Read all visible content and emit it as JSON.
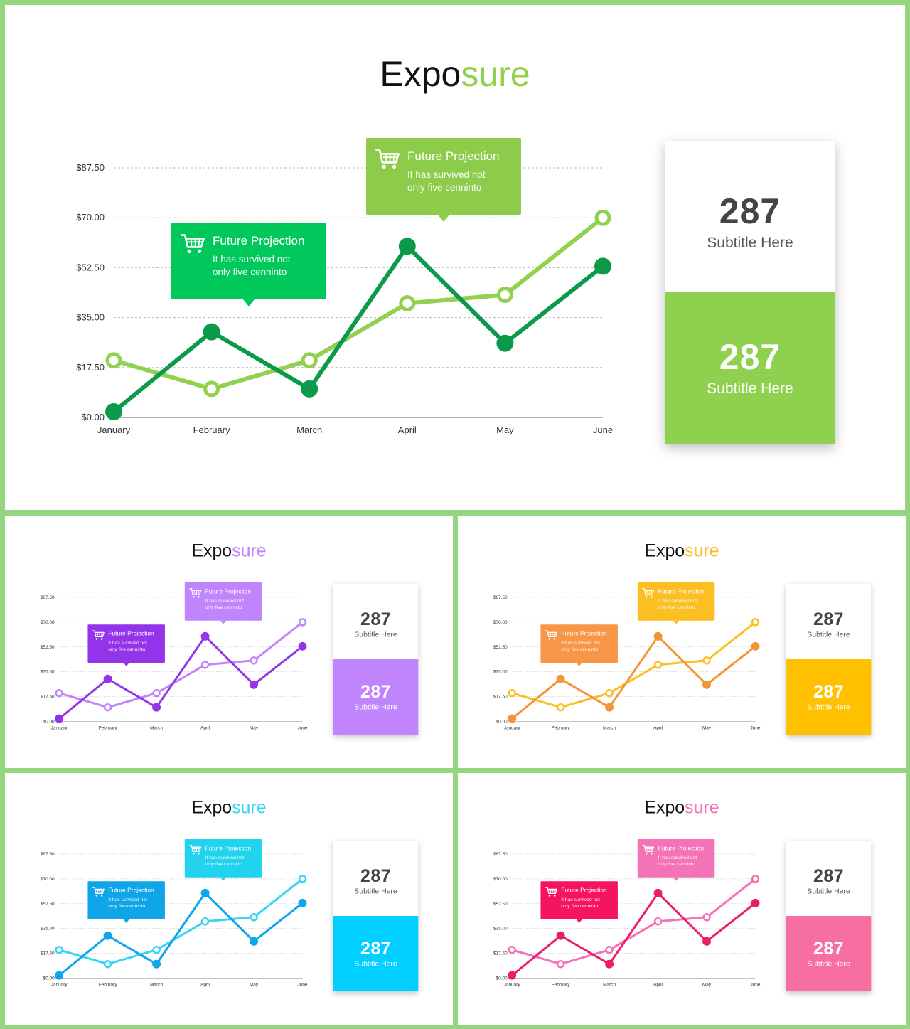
{
  "common": {
    "title_part1": "Expo",
    "title_part2": "sure",
    "callout_title": "Future Projection",
    "callout_body_line1": "It has survived not",
    "callout_body_line2": "only five cenninto",
    "card_top_value": "287",
    "card_top_subtitle": "Subtitle Here",
    "card_bottom_value": "287",
    "card_bottom_subtitle": "Subtitle Here",
    "cart_icon": "shopping-cart-icon"
  },
  "themes": {
    "green": {
      "dark": "#0a9a4a",
      "light": "#92d050",
      "callout_left": "#00c85a",
      "callout_right": "#8ccc4a",
      "card_bottom": "#8fd14f"
    },
    "purple": {
      "dark": "#9333ea",
      "light": "#c084fc",
      "callout_left": "#9333ea",
      "callout_right": "#c084fc",
      "card_bottom": "#c084fc"
    },
    "orange": {
      "dark": "#f39437",
      "light": "#fbbf24",
      "callout_left": "#f79646",
      "callout_right": "#fbbf24",
      "card_bottom": "#ffc000"
    },
    "blue": {
      "dark": "#0ea5e9",
      "light": "#38d4f5",
      "callout_left": "#0ea5e9",
      "callout_right": "#22d3ee",
      "card_bottom": "#00cfff"
    },
    "pink": {
      "dark": "#e91e63",
      "light": "#f472b6",
      "callout_left": "#f5155f",
      "callout_right": "#f472b6",
      "card_bottom": "#f76ea0"
    }
  },
  "chart_data": {
    "type": "line",
    "categories": [
      "January",
      "February",
      "March",
      "April",
      "May",
      "June"
    ],
    "yticks": [
      "$0.00",
      "$17.50",
      "$35.00",
      "$52.50",
      "$70.00",
      "$87.50"
    ],
    "ylim": [
      0,
      87.5
    ],
    "grid": true,
    "series": [
      {
        "values": [
          2,
          30,
          10,
          60,
          26,
          53
        ]
      },
      {
        "values": [
          20,
          10,
          20,
          40,
          43,
          70
        ]
      }
    ]
  }
}
